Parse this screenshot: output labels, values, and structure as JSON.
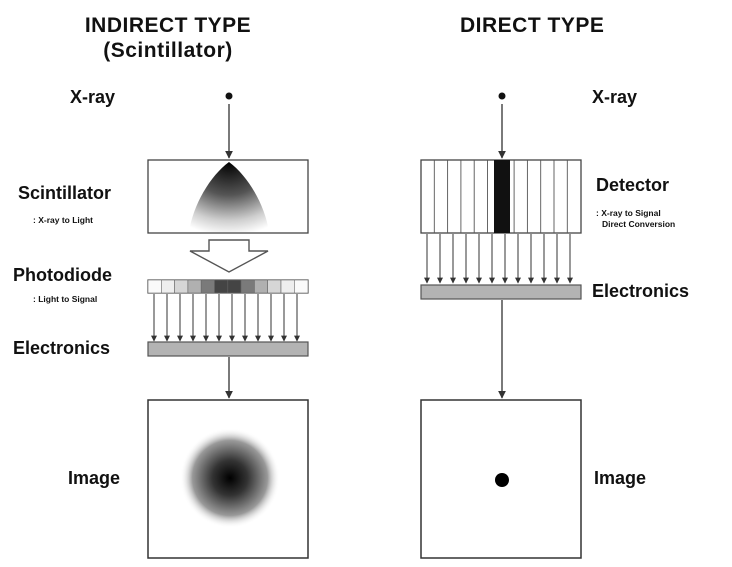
{
  "indirect": {
    "title_line1": "INDIRECT TYPE",
    "title_line2": "(Scintillator)",
    "xray_label": "X-ray",
    "scintillator_label": "Scintillator",
    "scintillator_sub": ": X-ray to Light",
    "photodiode_label": "Photodiode",
    "photodiode_sub": ": Light to Signal",
    "electronics_label": "Electronics",
    "image_label": "Image"
  },
  "direct": {
    "title": "DIRECT TYPE",
    "xray_label": "X-ray",
    "detector_label": "Detector",
    "detector_sub_line1": ": X-ray to Signal",
    "detector_sub_line2": "Direct Conversion",
    "electronics_label": "Electronics",
    "image_label": "Image"
  }
}
